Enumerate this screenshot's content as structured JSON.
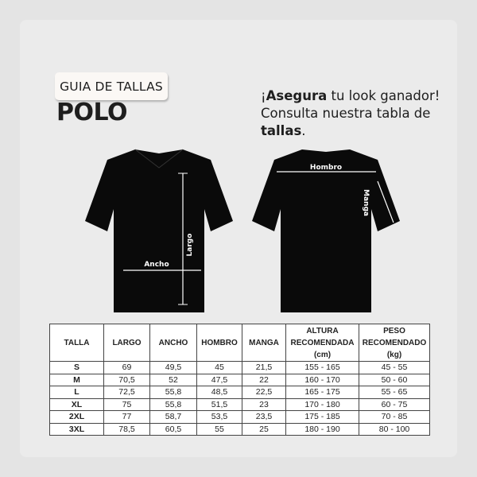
{
  "badge": "GUIA DE TALLAS",
  "title": "POLO",
  "tagline": {
    "bold1": "Asegura",
    "prefix": "¡",
    "text1": " tu look ganador! Consulta nuestra tabla de ",
    "bold2": "tallas",
    "suffix": "."
  },
  "front_labels": {
    "largo": "Largo",
    "ancho": "Ancho"
  },
  "back_labels": {
    "hombro": "Hombro",
    "manga": "Manga"
  },
  "table": {
    "headers": [
      "TALLA",
      "LARGO",
      "ANCHO",
      "HOMBRO",
      "MANGA",
      "ALTURA RECOMENDADA (cm)",
      "PESO RECOMENDADO (kg)"
    ],
    "rows": [
      [
        "S",
        "69",
        "49,5",
        "45",
        "21,5",
        "155 - 165",
        "45 - 55"
      ],
      [
        "M",
        "70,5",
        "52",
        "47,5",
        "22",
        "160 - 170",
        "50 - 60"
      ],
      [
        "L",
        "72,5",
        "55,8",
        "48,5",
        "22,5",
        "165 - 175",
        "55 - 65"
      ],
      [
        "XL",
        "75",
        "55,8",
        "51,5",
        "23",
        "170 - 180",
        "60 - 75"
      ],
      [
        "2XL",
        "77",
        "58,7",
        "53,5",
        "23,5",
        "175 - 185",
        "70 - 85"
      ],
      [
        "3XL",
        "78,5",
        "60,5",
        "55",
        "25",
        "180 - 190",
        "80 - 100"
      ]
    ]
  }
}
